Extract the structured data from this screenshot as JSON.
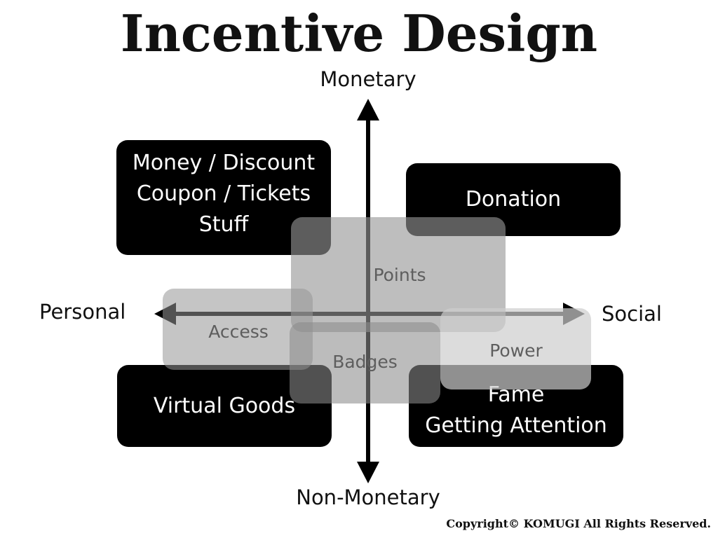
{
  "title": "Incentive Design",
  "axes": {
    "top": "Monetary",
    "bottom": "Non-Monetary",
    "left": "Personal",
    "right": "Social"
  },
  "quadrant_boxes": {
    "personal_monetary": [
      "Money / Discount",
      "Coupon / Tickets",
      "Stuff"
    ],
    "social_monetary": [
      "Donation"
    ],
    "personal_non_monetary": [
      "Virtual Goods"
    ],
    "social_non_monetary": [
      "Fame",
      "Getting Attention"
    ]
  },
  "overlay_boxes": {
    "points": "Points",
    "access": "Access",
    "badges": "Badges",
    "power": "Power"
  },
  "copyright": "Copyright© KOMUGI All Rights Reserved."
}
